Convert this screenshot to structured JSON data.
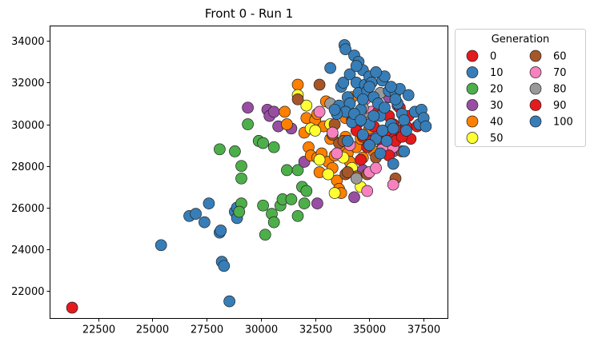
{
  "chart_data": {
    "type": "scatter",
    "title": "Front 0 - Run 1",
    "xlabel": "",
    "ylabel": "",
    "xlim": [
      20300,
      38600
    ],
    "ylim": [
      20700,
      34700
    ],
    "xticks": [
      22500,
      25000,
      27500,
      30000,
      32500,
      35000,
      37500
    ],
    "xtick_labels": [
      "22500",
      "25000",
      "27500",
      "30000",
      "32500",
      "35000",
      "37500"
    ],
    "yticks": [
      22000,
      24000,
      26000,
      28000,
      30000,
      32000,
      34000
    ],
    "ytick_labels": [
      "22000",
      "24000",
      "26000",
      "28000",
      "30000",
      "32000",
      "34000"
    ],
    "grid": false,
    "legend": {
      "title": "Generation",
      "placement": "outside-right",
      "columns": 2
    },
    "series": [
      {
        "name": "0",
        "color": "#e41a1c",
        "points": [
          [
            21300,
            21200
          ]
        ]
      },
      {
        "name": "10",
        "color": "#377eb8",
        "points": [
          [
            25400,
            24200
          ],
          [
            26700,
            25600
          ],
          [
            27000,
            25700
          ],
          [
            27400,
            25300
          ],
          [
            27600,
            26200
          ],
          [
            28100,
            24800
          ],
          [
            28150,
            24900
          ],
          [
            28200,
            23400
          ],
          [
            28300,
            23200
          ],
          [
            28550,
            21500
          ],
          [
            28800,
            25800
          ],
          [
            28900,
            25500
          ],
          [
            28900,
            26000
          ]
        ]
      },
      {
        "name": "20",
        "color": "#4daf4a",
        "points": [
          [
            28100,
            28800
          ],
          [
            28800,
            28700
          ],
          [
            29100,
            28000
          ],
          [
            29100,
            27400
          ],
          [
            29100,
            26200
          ],
          [
            29000,
            25800
          ],
          [
            29400,
            30000
          ],
          [
            29900,
            29200
          ],
          [
            30100,
            29100
          ],
          [
            30100,
            26100
          ],
          [
            30200,
            24700
          ],
          [
            30500,
            25700
          ],
          [
            30600,
            25300
          ],
          [
            30600,
            28900
          ],
          [
            30900,
            26100
          ],
          [
            31000,
            26400
          ],
          [
            31200,
            27800
          ],
          [
            31400,
            26400
          ],
          [
            31700,
            25600
          ],
          [
            31700,
            27800
          ],
          [
            31900,
            27000
          ],
          [
            32100,
            26800
          ],
          [
            32000,
            26200
          ]
        ]
      },
      {
        "name": "30",
        "color": "#984ea3",
        "points": [
          [
            29400,
            30800
          ],
          [
            30300,
            30700
          ],
          [
            30400,
            30400
          ],
          [
            30600,
            30600
          ],
          [
            30800,
            29900
          ],
          [
            31400,
            29800
          ],
          [
            32000,
            28200
          ],
          [
            32600,
            26200
          ],
          [
            34100,
            27800
          ],
          [
            34300,
            26500
          ],
          [
            34700,
            27800
          ],
          [
            35600,
            28900
          ],
          [
            36100,
            28700
          ],
          [
            35200,
            29600
          ],
          [
            34500,
            30100
          ],
          [
            36300,
            30900
          ],
          [
            35900,
            31300
          ]
        ]
      },
      {
        "name": "40",
        "color": "#ff7f00",
        "points": [
          [
            31100,
            30600
          ],
          [
            31200,
            30000
          ],
          [
            31700,
            31900
          ],
          [
            32000,
            29600
          ],
          [
            32100,
            30300
          ],
          [
            32200,
            28900
          ],
          [
            32300,
            29800
          ],
          [
            32300,
            28500
          ],
          [
            32500,
            30200
          ],
          [
            32600,
            28400
          ],
          [
            32700,
            27700
          ],
          [
            32800,
            28600
          ],
          [
            32900,
            29900
          ],
          [
            33100,
            28200
          ],
          [
            33200,
            29300
          ],
          [
            33300,
            27900
          ],
          [
            33400,
            28500
          ],
          [
            33500,
            27300
          ],
          [
            33600,
            26900
          ],
          [
            33700,
            26700
          ],
          [
            33800,
            28700
          ],
          [
            33900,
            29400
          ],
          [
            34000,
            28600
          ],
          [
            34100,
            28200
          ],
          [
            34200,
            30500
          ],
          [
            34400,
            28900
          ],
          [
            34600,
            29300
          ],
          [
            34700,
            28400
          ],
          [
            35000,
            29800
          ],
          [
            35200,
            28700
          ],
          [
            33400,
            30800
          ],
          [
            33900,
            30300
          ],
          [
            34200,
            31300
          ],
          [
            33000,
            31100
          ],
          [
            32600,
            30500
          ]
        ]
      },
      {
        "name": "50",
        "color": "#ffff33",
        "points": [
          [
            31700,
            31400
          ],
          [
            32100,
            30900
          ],
          [
            32300,
            29800
          ],
          [
            32500,
            29700
          ],
          [
            32700,
            28300
          ],
          [
            33100,
            27600
          ],
          [
            33200,
            30000
          ],
          [
            33400,
            26700
          ],
          [
            33800,
            28400
          ],
          [
            34200,
            27900
          ],
          [
            34600,
            27000
          ]
        ]
      },
      {
        "name": "60",
        "color": "#a65628",
        "points": [
          [
            31700,
            31200
          ],
          [
            32700,
            31900
          ],
          [
            33400,
            30000
          ],
          [
            33600,
            29100
          ],
          [
            33800,
            29200
          ],
          [
            33900,
            27600
          ],
          [
            34400,
            27500
          ],
          [
            34900,
            27600
          ],
          [
            35300,
            28400
          ],
          [
            35700,
            28700
          ],
          [
            36200,
            27400
          ],
          [
            36500,
            28700
          ],
          [
            34000,
            27700
          ],
          [
            33300,
            29500
          ]
        ]
      },
      {
        "name": "70",
        "color": "#f781bf",
        "points": [
          [
            32700,
            30600
          ],
          [
            33300,
            29600
          ],
          [
            34100,
            29000
          ],
          [
            34300,
            30400
          ],
          [
            34900,
            26800
          ],
          [
            35000,
            27700
          ],
          [
            35300,
            27900
          ],
          [
            35600,
            28800
          ],
          [
            36100,
            27100
          ],
          [
            36100,
            28900
          ],
          [
            34800,
            31200
          ],
          [
            33500,
            28600
          ],
          [
            35100,
            30600
          ]
        ]
      },
      {
        "name": "80",
        "color": "#999999",
        "points": [
          [
            33200,
            31000
          ],
          [
            33600,
            30800
          ],
          [
            34400,
            27400
          ],
          [
            35000,
            30300
          ],
          [
            35500,
            31500
          ],
          [
            35000,
            30100
          ],
          [
            34700,
            30800
          ]
        ]
      },
      {
        "name": "90",
        "color": "#e41a1c",
        "points": [
          [
            34200,
            30200
          ],
          [
            34400,
            29700
          ],
          [
            34700,
            29400
          ],
          [
            34900,
            28900
          ],
          [
            35200,
            29900
          ],
          [
            35500,
            29300
          ],
          [
            35900,
            28500
          ],
          [
            36000,
            29400
          ],
          [
            36100,
            30000
          ],
          [
            36200,
            29200
          ],
          [
            36400,
            29700
          ],
          [
            36700,
            29900
          ],
          [
            36900,
            29300
          ],
          [
            36800,
            30400
          ],
          [
            37200,
            29900
          ],
          [
            36400,
            30800
          ],
          [
            35900,
            30400
          ],
          [
            35400,
            30600
          ],
          [
            35100,
            29200
          ],
          [
            34600,
            28300
          ],
          [
            35800,
            29700
          ],
          [
            36500,
            29400
          ]
        ]
      },
      {
        "name": "100",
        "color": "#377eb8",
        "points": [
          [
            33200,
            32700
          ],
          [
            33600,
            30900
          ],
          [
            33700,
            31800
          ],
          [
            33800,
            32000
          ],
          [
            33850,
            33800
          ],
          [
            33900,
            33600
          ],
          [
            34000,
            31300
          ],
          [
            34100,
            32400
          ],
          [
            34200,
            30100
          ],
          [
            34300,
            33300
          ],
          [
            34400,
            32000
          ],
          [
            34500,
            33000
          ],
          [
            34500,
            31500
          ],
          [
            34600,
            30700
          ],
          [
            34700,
            29500
          ],
          [
            34700,
            32600
          ],
          [
            34800,
            31900
          ],
          [
            34900,
            31600
          ],
          [
            35000,
            32300
          ],
          [
            35000,
            30000
          ],
          [
            35100,
            32000
          ],
          [
            35200,
            31300
          ],
          [
            35300,
            29300
          ],
          [
            35400,
            31000
          ],
          [
            35500,
            30400
          ],
          [
            35600,
            32100
          ],
          [
            35700,
            32300
          ],
          [
            35700,
            30800
          ],
          [
            35800,
            29200
          ],
          [
            35900,
            31600
          ],
          [
            36000,
            30000
          ],
          [
            36100,
            29800
          ],
          [
            36200,
            31500
          ],
          [
            36300,
            31000
          ],
          [
            36400,
            31700
          ],
          [
            36500,
            30500
          ],
          [
            36600,
            30200
          ],
          [
            36600,
            28700
          ],
          [
            36700,
            29700
          ],
          [
            36800,
            31400
          ],
          [
            37100,
            30600
          ],
          [
            37300,
            30000
          ],
          [
            37400,
            30700
          ],
          [
            37500,
            30300
          ],
          [
            37600,
            29900
          ],
          [
            35500,
            28600
          ],
          [
            36100,
            28100
          ],
          [
            35000,
            29000
          ],
          [
            34100,
            31000
          ],
          [
            33900,
            30600
          ],
          [
            35300,
            32500
          ],
          [
            36200,
            31200
          ],
          [
            34700,
            31200
          ],
          [
            34300,
            30500
          ],
          [
            33500,
            30500
          ],
          [
            34000,
            29200
          ],
          [
            36000,
            31800
          ],
          [
            35600,
            29700
          ],
          [
            35000,
            31800
          ],
          [
            33400,
            30700
          ],
          [
            34600,
            30200
          ],
          [
            35200,
            30400
          ],
          [
            34400,
            32800
          ]
        ]
      }
    ]
  }
}
